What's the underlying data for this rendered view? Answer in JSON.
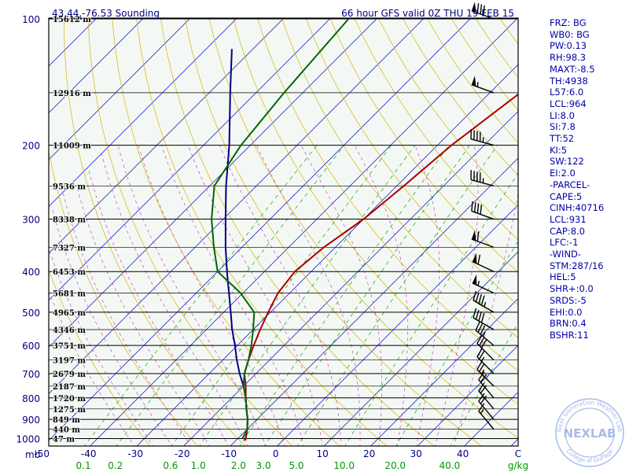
{
  "chart_data": {
    "type": "line",
    "title": "66 hour GFS valid 0Z THU 19 FEB 15",
    "location_label": "43.44,-76.53 Sounding",
    "pressure_axis": {
      "unit_label": "mb",
      "ticks": [
        100,
        200,
        300,
        400,
        500,
        600,
        700,
        800,
        900,
        1000
      ],
      "range": [
        100,
        1050
      ],
      "scale": "log"
    },
    "temperature_axis": {
      "unit_label": "C",
      "ticks": [
        "-50",
        "-40",
        "-30",
        "-20",
        "-10",
        "0",
        "10",
        "20",
        "30",
        "40"
      ],
      "range": [
        -50,
        50
      ]
    },
    "mixing_ratio_axis": {
      "unit_label": "g/kg",
      "labels": [
        "0.1",
        "0.2",
        "0.6",
        "1.0",
        "2.0",
        "3.0",
        "5.0",
        "10.0",
        "20.0",
        "40.0"
      ],
      "values": [
        0.1,
        0.2,
        0.6,
        1.0,
        2.0,
        3.0,
        5.0,
        10.0,
        20.0,
        40.0
      ]
    },
    "height_levels": [
      {
        "p": 100,
        "label": "15612 m"
      },
      {
        "p": 150,
        "label": "12916 m"
      },
      {
        "p": 200,
        "label": "11009 m"
      },
      {
        "p": 250,
        "label": "9536 m"
      },
      {
        "p": 300,
        "label": "8338 m"
      },
      {
        "p": 350,
        "label": "7327 m"
      },
      {
        "p": 400,
        "label": "6453 m"
      },
      {
        "p": 450,
        "label": "5681 m"
      },
      {
        "p": 500,
        "label": "4965 m"
      },
      {
        "p": 550,
        "label": "4346 m"
      },
      {
        "p": 600,
        "label": "3751 m"
      },
      {
        "p": 650,
        "label": "3197 m"
      },
      {
        "p": 700,
        "label": "2679 m"
      },
      {
        "p": 750,
        "label": "2187 m"
      },
      {
        "p": 800,
        "label": "1720 m"
      },
      {
        "p": 850,
        "label": "1275 m"
      },
      {
        "p": 900,
        "label": "849 m"
      },
      {
        "p": 950,
        "label": "440 m"
      },
      {
        "p": 1000,
        "label": "47 m"
      }
    ],
    "series": [
      {
        "color": "#000088",
        "points": [
          {
            "p": 1010,
            "t": -8
          },
          {
            "p": 950,
            "t": -10
          },
          {
            "p": 900,
            "t": -12
          },
          {
            "p": 850,
            "t": -14.5
          },
          {
            "p": 800,
            "t": -17
          },
          {
            "p": 750,
            "t": -20
          },
          {
            "p": 700,
            "t": -23.5
          },
          {
            "p": 650,
            "t": -27
          },
          {
            "p": 600,
            "t": -30.5
          },
          {
            "p": 550,
            "t": -34.5
          },
          {
            "p": 500,
            "t": -38.5
          },
          {
            "p": 450,
            "t": -43
          },
          {
            "p": 400,
            "t": -48
          },
          {
            "p": 350,
            "t": -53.5
          },
          {
            "p": 300,
            "t": -59.5
          },
          {
            "p": 250,
            "t": -66.5
          },
          {
            "p": 200,
            "t": -74.5
          },
          {
            "p": 150,
            "t": -85.5
          },
          {
            "p": 118,
            "t": -94.5
          }
        ]
      },
      {
        "color": "#aa0000",
        "points": [
          {
            "p": 1010,
            "t": -8
          },
          {
            "p": 950,
            "t": -10
          },
          {
            "p": 900,
            "t": -12
          },
          {
            "p": 850,
            "t": -14.5
          },
          {
            "p": 800,
            "t": -17
          },
          {
            "p": 750,
            "t": -19.5
          },
          {
            "p": 700,
            "t": -22.5
          },
          {
            "p": 650,
            "t": -24.5
          },
          {
            "p": 600,
            "t": -26.5
          },
          {
            "p": 550,
            "t": -28.5
          },
          {
            "p": 500,
            "t": -30.5
          },
          {
            "p": 450,
            "t": -32.5
          },
          {
            "p": 400,
            "t": -33.5
          },
          {
            "p": 350,
            "t": -32.5
          },
          {
            "p": 300,
            "t": -30
          },
          {
            "p": 250,
            "t": -28.5
          },
          {
            "p": 200,
            "t": -27
          },
          {
            "p": 150,
            "t": -23.5
          },
          {
            "p": 100,
            "t": -18.5
          }
        ]
      },
      {
        "color": "#006600",
        "points": [
          {
            "p": 1000,
            "t": -9
          },
          {
            "p": 950,
            "t": -10
          },
          {
            "p": 900,
            "t": -12
          },
          {
            "p": 850,
            "t": -14.5
          },
          {
            "p": 800,
            "t": -17
          },
          {
            "p": 750,
            "t": -20
          },
          {
            "p": 700,
            "t": -22.5
          },
          {
            "p": 650,
            "t": -24.5
          },
          {
            "p": 600,
            "t": -27
          },
          {
            "p": 550,
            "t": -30
          },
          {
            "p": 500,
            "t": -33.5
          },
          {
            "p": 450,
            "t": -40.5
          },
          {
            "p": 400,
            "t": -50
          },
          {
            "p": 350,
            "t": -56
          },
          {
            "p": 300,
            "t": -62.5
          },
          {
            "p": 250,
            "t": -69
          },
          {
            "p": 200,
            "t": -72
          },
          {
            "p": 150,
            "t": -74
          },
          {
            "p": 100,
            "t": -76
          }
        ]
      }
    ],
    "winds": [
      {
        "p": 100,
        "dir": 290,
        "kt": 80
      },
      {
        "p": 150,
        "dir": 290,
        "kt": 55
      },
      {
        "p": 200,
        "dir": 285,
        "kt": 45
      },
      {
        "p": 250,
        "dir": 285,
        "kt": 45
      },
      {
        "p": 300,
        "dir": 290,
        "kt": 40
      },
      {
        "p": 350,
        "dir": 290,
        "kt": 60
      },
      {
        "p": 400,
        "dir": 295,
        "kt": 60
      },
      {
        "p": 450,
        "dir": 295,
        "kt": 55
      },
      {
        "p": 500,
        "dir": 300,
        "kt": 45
      },
      {
        "p": 550,
        "dir": 300,
        "kt": 40
      },
      {
        "p": 600,
        "dir": 310,
        "kt": 35
      },
      {
        "p": 650,
        "dir": 315,
        "kt": 30
      },
      {
        "p": 700,
        "dir": 315,
        "kt": 25
      },
      {
        "p": 750,
        "dir": 315,
        "kt": 25
      },
      {
        "p": 800,
        "dir": 320,
        "kt": 20
      },
      {
        "p": 850,
        "dir": 320,
        "kt": 20
      },
      {
        "p": 900,
        "dir": 320,
        "kt": 20
      },
      {
        "p": 950,
        "dir": 320,
        "kt": 15
      }
    ],
    "grid": true,
    "legend": "none",
    "colors": {
      "frame": "#000000",
      "background": "#f4f8f4",
      "isotherm": "#0000cc",
      "dry_adiabat": "#d4b400",
      "moist_adiabat": "#cc44cc",
      "mixing_ratio": "#00aa00",
      "axis_label": "#000080",
      "mixing_label": "#009900"
    }
  },
  "indices": [
    "FRZ: BG",
    "WB0: BG",
    "PW:0.13",
    "RH:98.3",
    "MAXT:-8.5",
    "TH:4938",
    "L57:6.0",
    "LCL:964",
    "LI:8.0",
    "SI:7.8",
    "TT:52",
    "KI:5",
    "SW:122",
    "EI:2.0",
    "-PARCEL-",
    "CAPE:5",
    "CINH:40716",
    "LCL:931",
    "CAP:8.0",
    "LFC:-1",
    "-WIND-",
    "STM:287/16",
    "HEL:5",
    "SHR+:0.0",
    "SRDS:-5",
    "EHI:0.0",
    "BRN:0.4",
    "BSHR:11"
  ],
  "logo": {
    "main_text": "NEXLAB",
    "ring_top": "Next Generation Weather Lab",
    "ring_bottom": "College of DuPage"
  }
}
